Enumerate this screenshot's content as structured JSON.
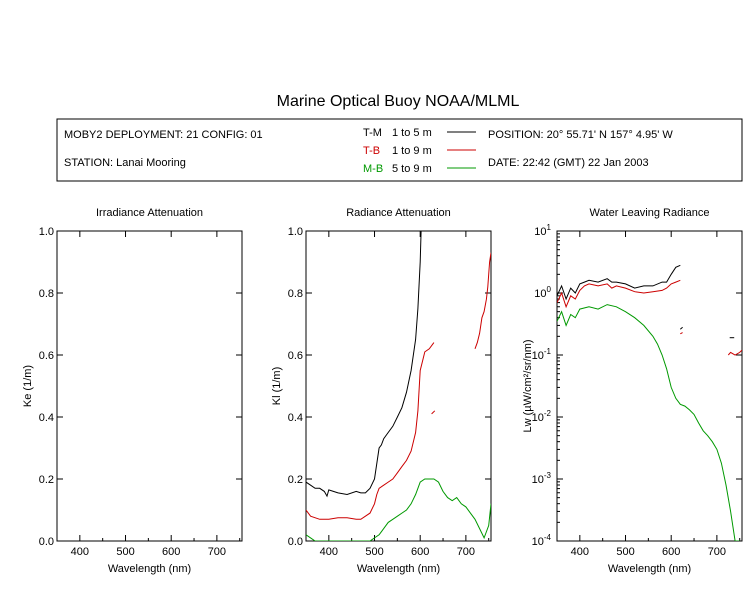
{
  "title": "Marine Optical Buoy NOAA/MLML",
  "info": {
    "deployment": "MOBY2 DEPLOYMENT: 21 CONFIG: 01",
    "station": "STATION: Lanai Mooring",
    "position": "POSITION: 20° 55.71' N   157° 4.95' W",
    "date": "DATE: 22:42 (GMT) 22 Jan 2003",
    "legend": [
      {
        "code": "T-M",
        "range": "1 to 5  m",
        "color": "#000000"
      },
      {
        "code": "T-B",
        "range": "1 to 9  m",
        "color": "#cc0000"
      },
      {
        "code": "M-B",
        "range": "5 to 9  m",
        "color": "#009900"
      }
    ]
  },
  "chart_data": [
    {
      "type": "line",
      "title": "Irradiance Attenuation",
      "xlabel": "Wavelength (nm)",
      "ylabel": "Ke  (1/m)",
      "xlim": [
        350,
        755
      ],
      "ylim": [
        0,
        1
      ],
      "xticks": [
        "400",
        "500",
        "600",
        "700"
      ],
      "yticks": [
        "0.0",
        "0.2",
        "0.4",
        "0.6",
        "0.8",
        "1.0"
      ],
      "series": []
    },
    {
      "type": "line",
      "title": "Radiance Attenuation",
      "xlabel": "Wavelength (nm)",
      "ylabel": "Kl  (1/m)",
      "xlim": [
        350,
        755
      ],
      "ylim": [
        0,
        1
      ],
      "xticks": [
        "400",
        "500",
        "600",
        "700"
      ],
      "yticks": [
        "0.0",
        "0.2",
        "0.4",
        "0.6",
        "0.8",
        "1.0"
      ],
      "series": [
        {
          "color": "#000000",
          "segments": [
            {
              "x": [
                350,
                360,
                370,
                380,
                390,
                396,
                400,
                410,
                420,
                440,
                460,
                470,
                480,
                490,
                500,
                505,
                510,
                515,
                520,
                530,
                540,
                550,
                560,
                570,
                580,
                590,
                595,
                600,
                602
              ],
              "y": [
                0.19,
                0.18,
                0.17,
                0.17,
                0.16,
                0.145,
                0.165,
                0.16,
                0.155,
                0.15,
                0.16,
                0.155,
                0.155,
                0.17,
                0.2,
                0.25,
                0.3,
                0.31,
                0.33,
                0.35,
                0.37,
                0.4,
                0.43,
                0.48,
                0.55,
                0.65,
                0.75,
                0.9,
                1.0
              ]
            }
          ]
        },
        {
          "color": "#cc0000",
          "segments": [
            {
              "x": [
                350,
                360,
                380,
                400,
                420,
                440,
                460,
                470,
                480,
                490,
                500,
                505,
                510,
                520,
                530,
                540,
                550,
                560,
                570,
                580,
                590,
                595,
                600,
                605,
                610,
                620,
                630
              ],
              "y": [
                0.1,
                0.08,
                0.07,
                0.07,
                0.075,
                0.075,
                0.07,
                0.07,
                0.08,
                0.09,
                0.12,
                0.15,
                0.17,
                0.18,
                0.19,
                0.2,
                0.22,
                0.24,
                0.26,
                0.29,
                0.35,
                0.42,
                0.55,
                0.58,
                0.61,
                0.62,
                0.64
              ]
            },
            {
              "x": [
                625,
                632
              ],
              "y": [
                0.41,
                0.42
              ]
            },
            {
              "x": [
                720,
                725,
                730,
                735,
                740,
                745,
                748,
                750,
                752,
                755
              ],
              "y": [
                0.62,
                0.64,
                0.67,
                0.72,
                0.74,
                0.78,
                0.82,
                0.86,
                0.9,
                0.93
              ]
            }
          ]
        },
        {
          "color": "#009900",
          "segments": [
            {
              "x": [
                350,
                360,
                370,
                380,
                390,
                400,
                420,
                440,
                460,
                480,
                490,
                500,
                510,
                520,
                530,
                540,
                550,
                560,
                570,
                580,
                590,
                600,
                610,
                620,
                630,
                640,
                650,
                660,
                670,
                680,
                690,
                700,
                710,
                720,
                730,
                740,
                750,
                755
              ],
              "y": [
                0.02,
                0.01,
                0.0,
                0.0,
                0.0,
                0.0,
                0.0,
                0.0,
                0.0,
                0.0,
                0.0,
                0.01,
                0.02,
                0.04,
                0.06,
                0.07,
                0.08,
                0.09,
                0.1,
                0.12,
                0.15,
                0.19,
                0.2,
                0.2,
                0.2,
                0.19,
                0.16,
                0.14,
                0.13,
                0.14,
                0.12,
                0.11,
                0.09,
                0.07,
                0.04,
                0.01,
                0.05,
                0.12
              ]
            }
          ]
        }
      ]
    },
    {
      "type": "line",
      "title": "Water Leaving Radiance",
      "xlabel": "Wavelength (nm)",
      "ylabel": "Lw  (µW/cm²/sr/nm)",
      "xlim": [
        350,
        755
      ],
      "ylim": [
        0.0001,
        10
      ],
      "yscale": "log",
      "xticks": [
        "400",
        "500",
        "600",
        "700"
      ],
      "yticks": [
        {
          "base": "10",
          "exp": "1"
        },
        {
          "base": "10",
          "exp": "0"
        },
        {
          "base": "10",
          "exp": "-1"
        },
        {
          "base": "10",
          "exp": "-2"
        },
        {
          "base": "10",
          "exp": "-3"
        },
        {
          "base": "10",
          "exp": "-4"
        }
      ],
      "series": [
        {
          "color": "#000000",
          "segments": [
            {
              "x": [
                350,
                360,
                370,
                380,
                390,
                400,
                410,
                420,
                440,
                460,
                470,
                480,
                500,
                520,
                540,
                560,
                580,
                590,
                600,
                610,
                620
              ],
              "y": [
                0.9,
                1.3,
                0.8,
                1.2,
                1.0,
                1.4,
                1.5,
                1.6,
                1.5,
                1.7,
                1.5,
                1.5,
                1.4,
                1.2,
                1.3,
                1.3,
                1.5,
                1.5,
                2.0,
                2.6,
                2.8
              ]
            },
            {
              "x": [
                620,
                625
              ],
              "y": [
                0.26,
                0.28
              ]
            },
            {
              "x": [
                728,
                738
              ],
              "y": [
                0.19,
                0.19
              ]
            }
          ]
        },
        {
          "color": "#cc0000",
          "segments": [
            {
              "x": [
                350,
                360,
                370,
                380,
                390,
                400,
                410,
                420,
                440,
                460,
                470,
                480,
                500,
                520,
                540,
                560,
                580,
                590,
                600,
                610,
                620
              ],
              "y": [
                0.7,
                1.0,
                0.6,
                0.9,
                0.8,
                1.1,
                1.3,
                1.4,
                1.3,
                1.4,
                1.2,
                1.3,
                1.2,
                1.05,
                1.0,
                1.05,
                1.1,
                1.2,
                1.4,
                1.5,
                1.6
              ]
            },
            {
              "x": [
                620,
                625
              ],
              "y": [
                0.22,
                0.23
              ]
            },
            {
              "x": [
                725,
                730,
                740,
                750,
                755
              ],
              "y": [
                0.1,
                0.11,
                0.1,
                0.11,
                0.12
              ]
            }
          ]
        },
        {
          "color": "#009900",
          "segments": [
            {
              "x": [
                350,
                360,
                370,
                380,
                390,
                400,
                420,
                440,
                460,
                480,
                500,
                520,
                540,
                560,
                570,
                580,
                590,
                600,
                610,
                620,
                630,
                640,
                650,
                660,
                670,
                680,
                690,
                700,
                710,
                720,
                730,
                740,
                750
              ],
              "y": [
                0.35,
                0.5,
                0.3,
                0.45,
                0.4,
                0.55,
                0.6,
                0.55,
                0.65,
                0.6,
                0.5,
                0.4,
                0.3,
                0.2,
                0.15,
                0.1,
                0.06,
                0.03,
                0.02,
                0.016,
                0.015,
                0.013,
                0.011,
                0.008,
                0.006,
                0.005,
                0.004,
                0.003,
                0.0018,
                0.0008,
                0.0003,
                0.0001,
                0.0001
              ]
            }
          ]
        }
      ]
    }
  ]
}
